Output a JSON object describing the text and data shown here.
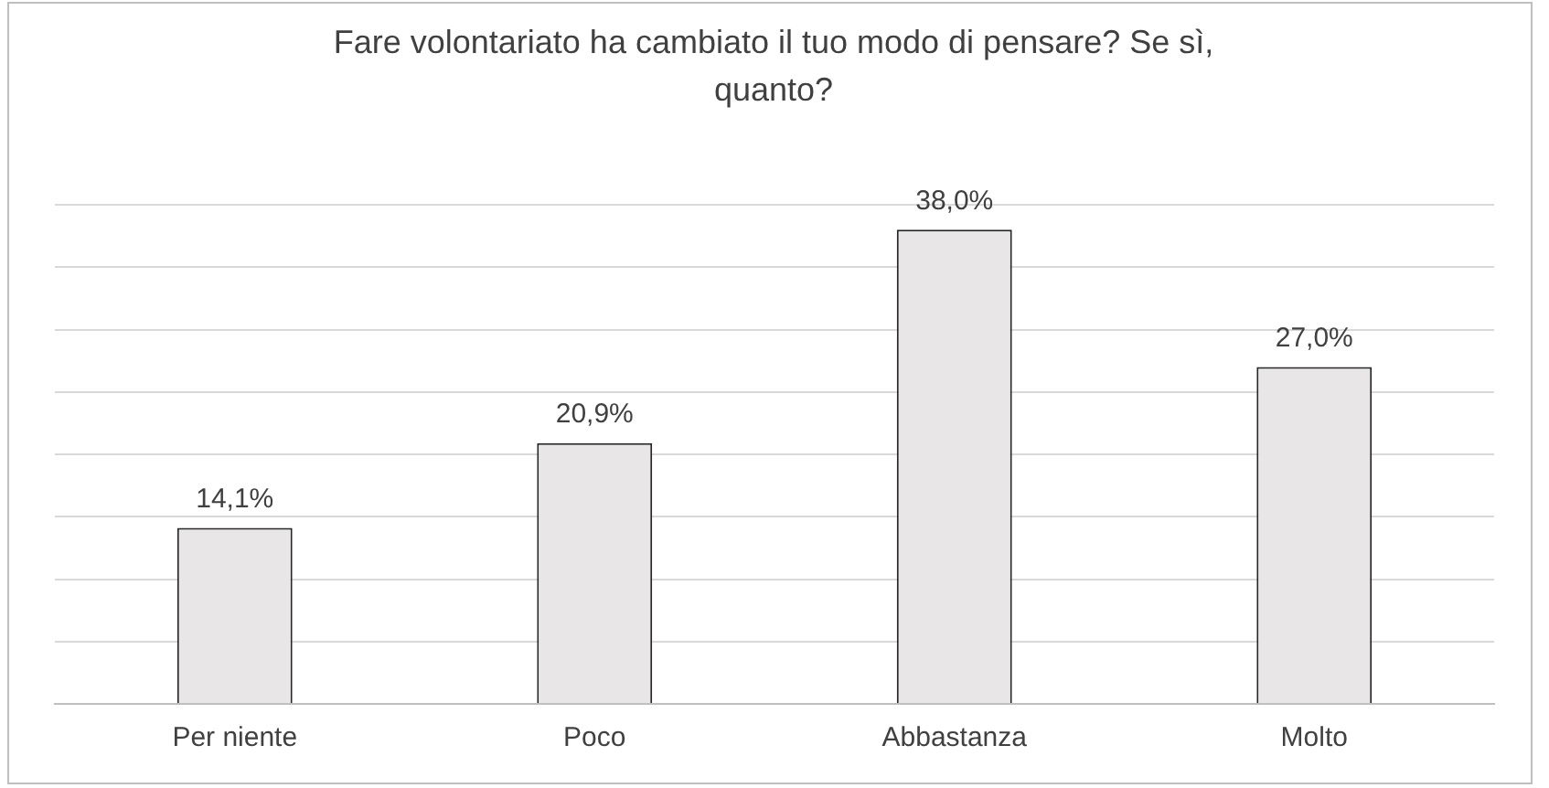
{
  "chart_data": {
    "type": "bar",
    "title": "Fare volontariato ha cambiato il tuo modo di pensare? Se sì, quanto?",
    "categories": [
      "Per niente",
      "Poco",
      "Abbastanza",
      "Molto"
    ],
    "values": [
      14.1,
      20.9,
      38.0,
      27.0
    ],
    "value_labels": [
      "14,1%",
      "20,9%",
      "38,0%",
      "27,0%"
    ],
    "color": "#e8e6e6",
    "ylim": [
      0,
      40
    ],
    "yticks": [
      {
        "value": 0,
        "label": null
      },
      {
        "value": 5,
        "label": null
      },
      {
        "value": 10,
        "label": null
      },
      {
        "value": 15,
        "label": null
      },
      {
        "value": 20,
        "label": null
      },
      {
        "value": 25,
        "label": null
      },
      {
        "value": 30,
        "label": null
      },
      {
        "value": 35,
        "label": null
      },
      {
        "value": 40,
        "label": null
      }
    ],
    "grid": "y",
    "tick_labels": "x",
    "legend": false
  }
}
